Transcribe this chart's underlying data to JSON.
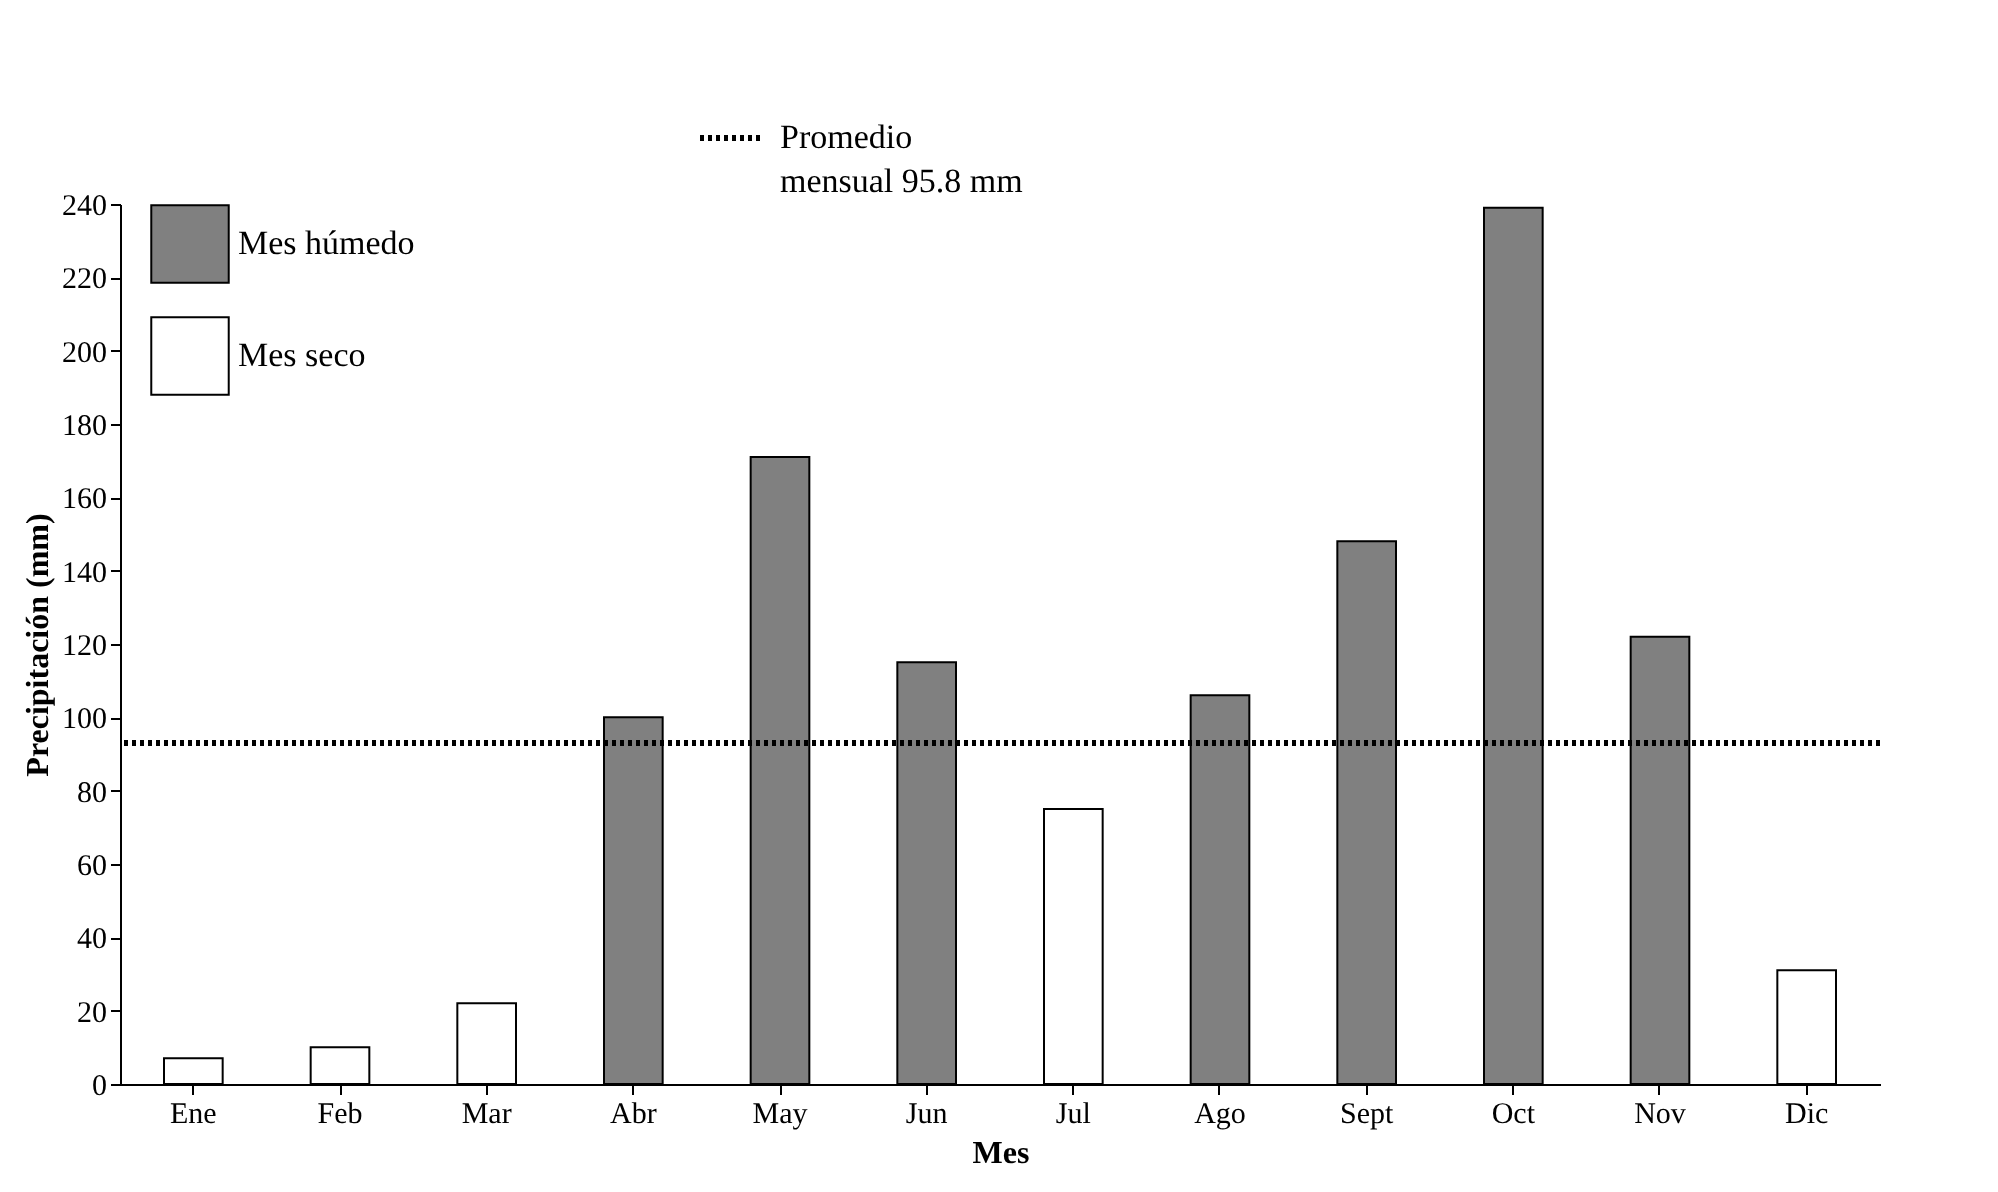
{
  "chart_data": {
    "type": "bar",
    "categories": [
      "Ene",
      "Feb",
      "Mar",
      "Abr",
      "May",
      "Jun",
      "Jul",
      "Ago",
      "Sept",
      "Oct",
      "Nov",
      "Dic"
    ],
    "series": [
      {
        "name": "Mes húmedo",
        "color": "#808080",
        "values": [
          null,
          null,
          null,
          100,
          171,
          115,
          null,
          106,
          148,
          239,
          122,
          null
        ]
      },
      {
        "name": "Mes seco",
        "color": "#ffffff",
        "values": [
          7,
          10,
          22,
          null,
          null,
          null,
          75,
          null,
          null,
          null,
          null,
          31
        ]
      }
    ],
    "xlabel": "Mes",
    "ylabel": "Precipitación (mm)",
    "ylim": [
      0,
      240
    ],
    "yticks": [
      0,
      20,
      40,
      60,
      80,
      100,
      120,
      140,
      160,
      180,
      200,
      220,
      240
    ],
    "ref_lines": [
      {
        "axis": "y",
        "value": 93,
        "label": "Promedio mensual 95.8 mm",
        "color": "#000000",
        "line_style": "dotted"
      }
    ],
    "grid": false,
    "legend": "top left"
  }
}
